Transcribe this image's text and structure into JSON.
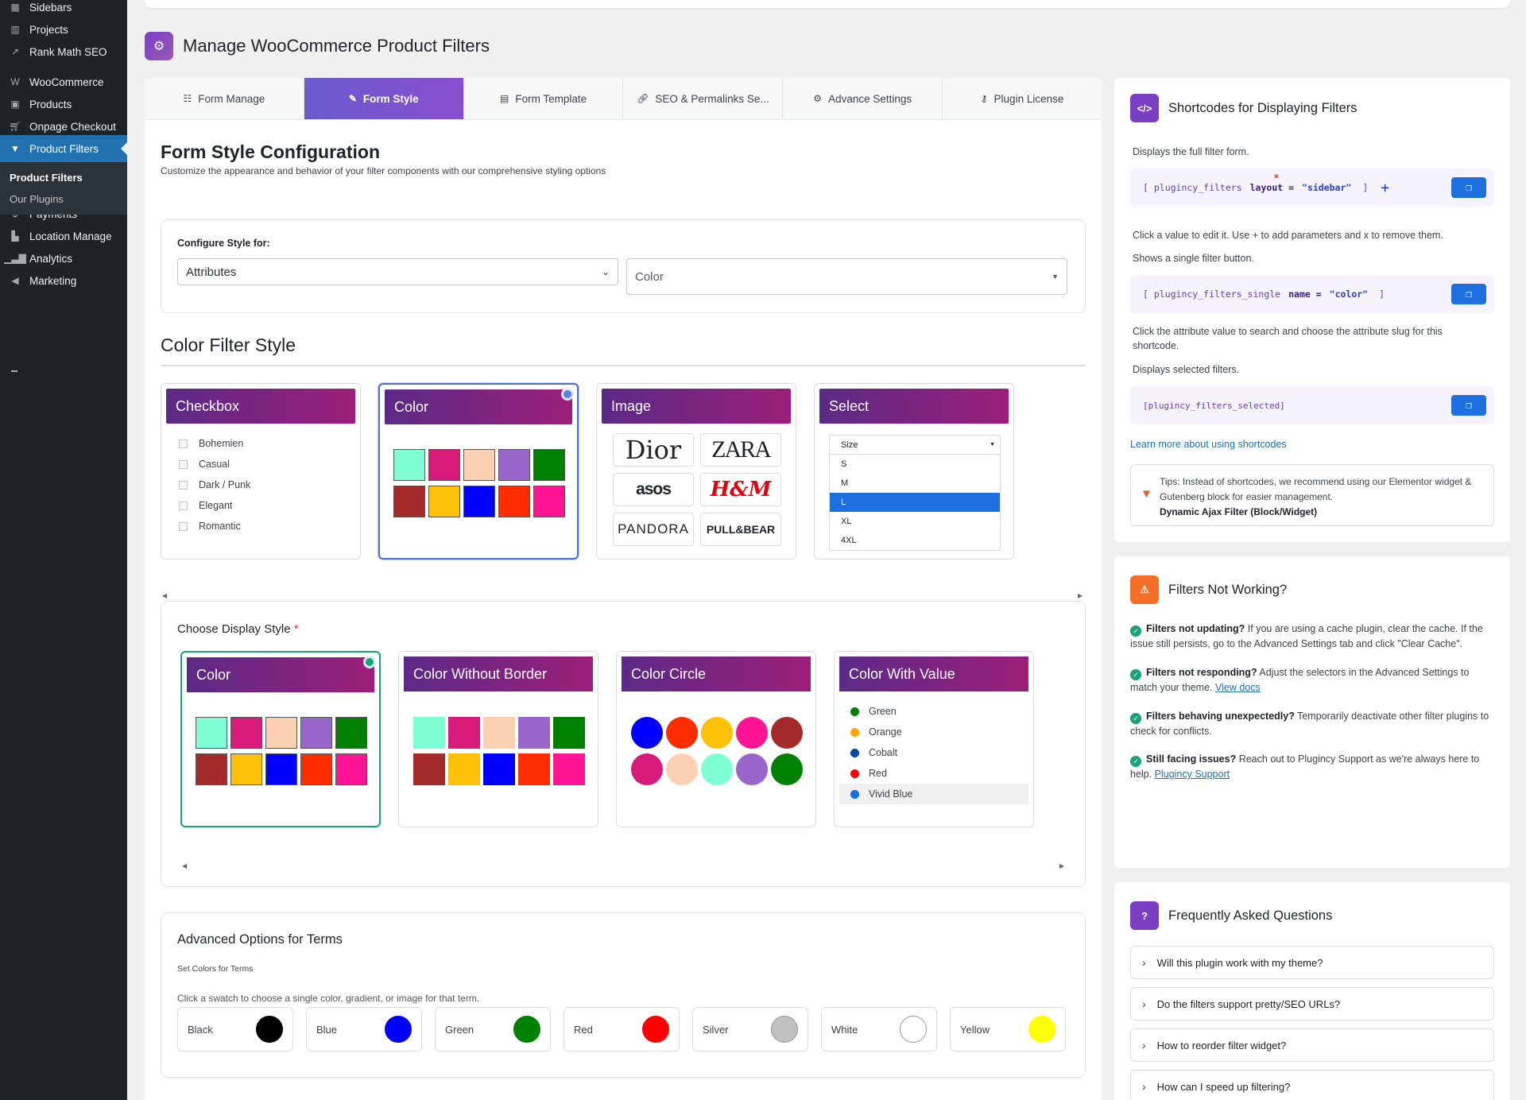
{
  "sidebar": {
    "items": [
      {
        "label": "Sidebars",
        "icon": "grid-icon"
      },
      {
        "label": "Projects",
        "icon": "chart-icon"
      },
      {
        "label": "Rank Math SEO",
        "icon": "rankmath-icon"
      },
      {
        "label": "WooCommerce",
        "icon": "woo-icon"
      },
      {
        "label": "Products",
        "icon": "box-icon"
      },
      {
        "label": "Onpage Checkout",
        "icon": "cart-icon"
      },
      {
        "label": "Product Filters",
        "icon": "filter-icon"
      },
      {
        "label": "Payments",
        "icon": "dollar-icon"
      },
      {
        "label": "Location Manage",
        "icon": "building-icon"
      },
      {
        "label": "Analytics",
        "icon": "bar-chart-icon"
      },
      {
        "label": "Marketing",
        "icon": "megaphone-icon"
      }
    ],
    "sub": [
      "Product Filters",
      "Our Plugins"
    ]
  },
  "header": {
    "title": "Manage WooCommerce Product Filters"
  },
  "tabs": [
    "Form Manage",
    "Form Style",
    "Form Template",
    "SEO & Permalinks Se...",
    "Advance Settings",
    "Plugin License"
  ],
  "main": {
    "title": "Form Style Configuration",
    "subtitle": "Customize the appearance and behavior of your filter components with our comprehensive styling options",
    "configure_label": "Configure Style for:",
    "select1": "Attributes",
    "select2": "Color",
    "color_filter_title": "Color Filter Style",
    "style_cards": {
      "checkbox": {
        "title": "Checkbox",
        "items": [
          "Bohemien",
          "Casual",
          "Dark / Punk",
          "Elegant",
          "Romantic"
        ]
      },
      "color": {
        "title": "Color"
      },
      "image": {
        "title": "Image",
        "brands": [
          "Dior",
          "ZARA",
          "asos",
          "H&M",
          "PANDORA",
          "PULL&BEAR"
        ]
      },
      "select": {
        "title": "Select",
        "header": "Size",
        "options": [
          "S",
          "M",
          "L",
          "XL",
          "4XL"
        ]
      }
    },
    "display_label": "Choose Display Style",
    "required_mark": "*",
    "display_cards": [
      "Color",
      "Color Without Border",
      "Color Circle",
      "Color With Value"
    ],
    "color_with_value": [
      "Green",
      "Orange",
      "Cobalt",
      "Red",
      "Vivid Blue"
    ],
    "advanced_title": "Advanced Options for Terms",
    "set_colors_label": "Set Colors for Terms",
    "swatch_hint": "Click a swatch to choose a single color, gradient, or image for that term.",
    "terms": [
      {
        "name": "Black",
        "color": "#000000"
      },
      {
        "name": "Blue",
        "color": "#0000ff"
      },
      {
        "name": "Green",
        "color": "#008000"
      },
      {
        "name": "Red",
        "color": "#ff0000"
      },
      {
        "name": "Silver",
        "color": "#c0c0c0"
      },
      {
        "name": "White",
        "color": "#ffffff"
      },
      {
        "name": "Yellow",
        "color": "#ffff00"
      }
    ]
  },
  "colors": {
    "swatches": [
      "#7fffd4",
      "#d81b7a",
      "#ffd1b3",
      "#9966cc",
      "#008000",
      "#a52a2a",
      "#ffc107",
      "#0000ff",
      "#ff2d00",
      "#ff1493"
    ],
    "circles": [
      "#0000ff",
      "#ff2d00",
      "#ffc107",
      "#ff1493",
      "#a52a2a",
      "#d81b7a",
      "#ffd1b3",
      "#7fffd4",
      "#9966cc",
      "#008000"
    ],
    "value_dots": [
      "#008000",
      "#ffa500",
      "#0047ab",
      "#ff0000",
      "#1e6fe0"
    ]
  },
  "shortcodes": {
    "title": "Shortcodes for Displaying Filters",
    "desc1": "Displays the full filter form.",
    "code1_tag": "[ plugincy_filters",
    "code1_param": "layout =",
    "code1_value": "\"sidebar\"",
    "code1_close": "]",
    "remove_mark": "×",
    "add_mark": "+",
    "hint1": "Click a value to edit it. Use + to add parameters and x to remove them.",
    "desc2": "Shows a single filter button.",
    "code2_tag": "[ plugincy_filters_single",
    "code2_param": "name =",
    "code2_value": "\"color\"",
    "code2_close": "]",
    "hint2": "Click the attribute value to search and choose the attribute slug for this shortcode.",
    "desc3": "Displays selected filters.",
    "code3": "[plugincy_filters_selected]",
    "learn_more": "Learn more about using shortcodes",
    "tip": "Tips: Instead of shortcodes, we recommend using our Elementor widget & Gutenberg block for easier management.",
    "tip_bold": "Dynamic Ajax Filter (Block/Widget)"
  },
  "not_working": {
    "title": "Filters Not Working?",
    "items": [
      {
        "b": "Filters not updating?",
        "t": " If you are using a cache plugin, clear the cache. If the issue still persists, go to the Advanced Settings tab and click \"Clear Cache\".",
        "link": ""
      },
      {
        "b": "Filters not responding?",
        "t": " Adjust the selectors in the Advanced Settings to match your theme. ",
        "link": "View docs"
      },
      {
        "b": "Filters behaving unexpectedly?",
        "t": " Temporarily deactivate other filter plugins to check for conflicts.",
        "link": ""
      },
      {
        "b": "Still facing issues?",
        "t": " Reach out to Plugincy Support as we're always here to help. ",
        "link": "Plugincy Support"
      }
    ]
  },
  "faq": {
    "title": "Frequently Asked Questions",
    "items": [
      "Will this plugin work with my theme?",
      "Do the filters support pretty/SEO URLs?",
      "How to reorder filter widget?",
      "How can I speed up filtering?"
    ]
  }
}
